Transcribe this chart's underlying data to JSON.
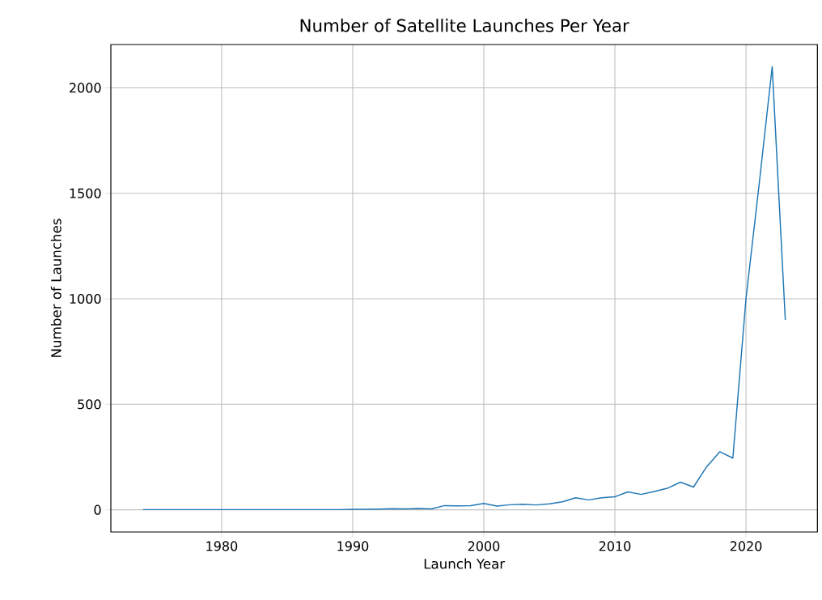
{
  "chart_data": {
    "type": "line",
    "title": "Number of Satellite Launches Per Year",
    "xlabel": "Launch Year",
    "ylabel": "Number of Launches",
    "x": [
      1974,
      1975,
      1976,
      1977,
      1978,
      1979,
      1980,
      1981,
      1982,
      1983,
      1984,
      1985,
      1986,
      1987,
      1988,
      1989,
      1990,
      1991,
      1992,
      1993,
      1994,
      1995,
      1996,
      1997,
      1998,
      1999,
      2000,
      2001,
      2002,
      2003,
      2004,
      2005,
      2006,
      2007,
      2008,
      2009,
      2010,
      2011,
      2012,
      2013,
      2014,
      2015,
      2016,
      2017,
      2018,
      2019,
      2020,
      2021,
      2022,
      2023
    ],
    "series": [
      {
        "color": "#1f77b4",
        "values": [
          1,
          1,
          1,
          1,
          1,
          1,
          1,
          1,
          1,
          1,
          1,
          1,
          1,
          1,
          1,
          1,
          2,
          2,
          3,
          5,
          4,
          6,
          4,
          20,
          19,
          20,
          30,
          18,
          24,
          26,
          23,
          28,
          38,
          57,
          47,
          57,
          62,
          85,
          73,
          87,
          102,
          131,
          108,
          204,
          275,
          245,
          1000,
          1540,
          2100,
          900
        ]
      }
    ],
    "xlim": [
      1971.55,
      2025.45
    ],
    "ylim": [
      -105,
      2205
    ],
    "xticks": [
      1980,
      1990,
      2000,
      2010,
      2020
    ],
    "yticks": [
      0,
      500,
      1000,
      1500,
      2000
    ],
    "grid": true,
    "marker": "none",
    "line_style": "solid"
  }
}
